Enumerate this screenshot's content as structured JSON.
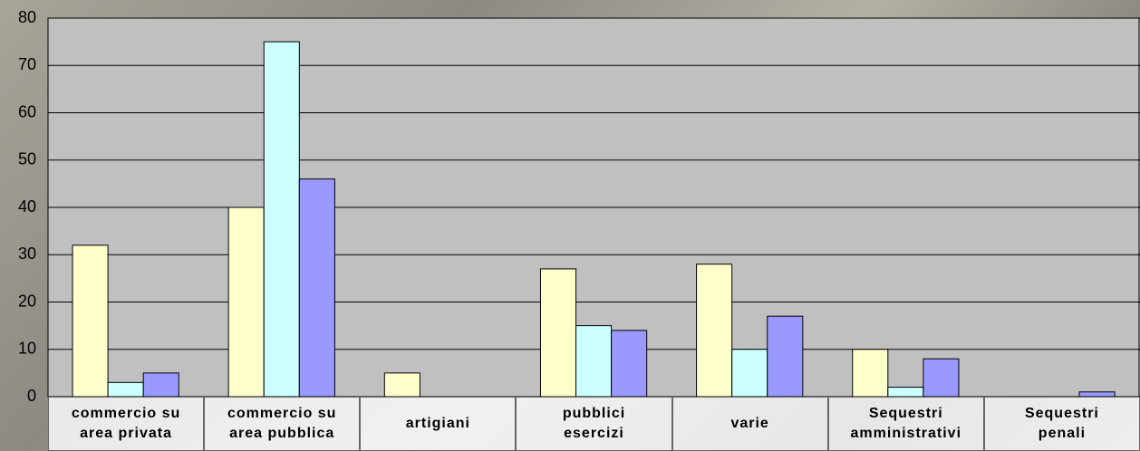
{
  "chart_data": {
    "type": "bar",
    "categories": [
      "commercio su\narea privata",
      "commercio su\narea pubblica",
      "artigiani",
      "pubblici\nesercizi",
      "varie",
      "Sequestri\namministrativi",
      "Sequestri\npenali"
    ],
    "series": [
      {
        "color": "#ffffcc",
        "values": [
          32,
          40,
          5,
          27,
          28,
          10,
          0
        ]
      },
      {
        "color": "#ccffff",
        "values": [
          3,
          75,
          0,
          15,
          10,
          2,
          0
        ]
      },
      {
        "color": "#9999ff",
        "values": [
          5,
          46,
          0,
          14,
          17,
          8,
          1
        ]
      }
    ],
    "ylim": [
      0,
      80
    ],
    "yticks": [
      0,
      10,
      20,
      30,
      40,
      50,
      60,
      70,
      80
    ],
    "grid": true
  }
}
